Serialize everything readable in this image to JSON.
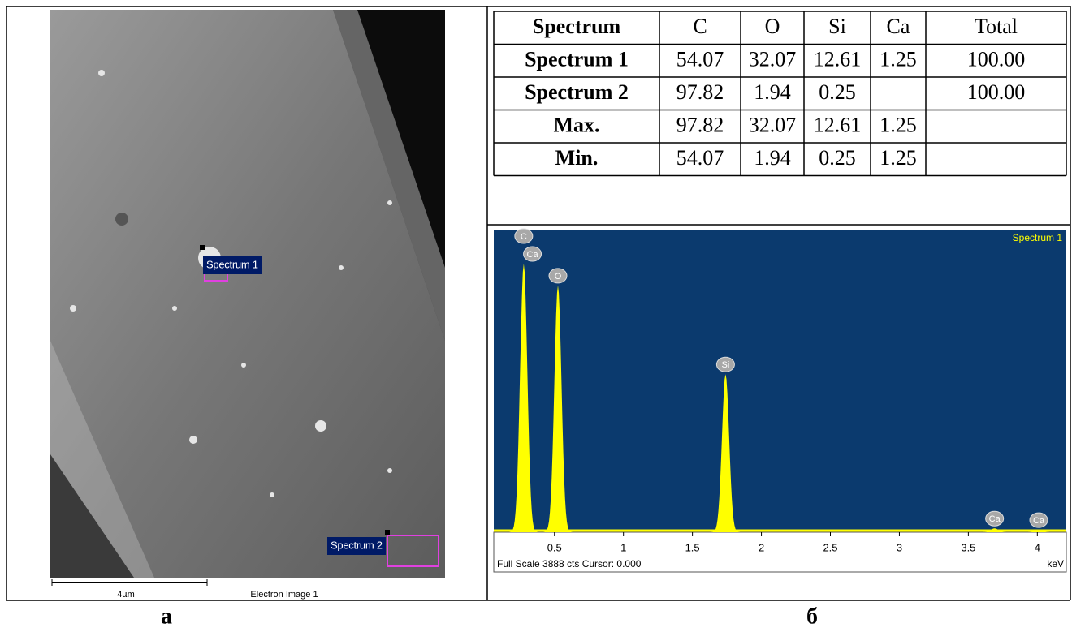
{
  "figure": {
    "image": {
      "spectrum_1": "Spectrum 1",
      "spectrum_2": "Spectrum 2",
      "scale_bar": "4µm",
      "caption": "Electron Image 1"
    },
    "table": {
      "header": [
        "Spectrum",
        "C",
        "O",
        "Si",
        "Ca",
        "Total"
      ],
      "rows": [
        [
          "Spectrum 1",
          "54.07",
          "32.07",
          "12.61",
          "1.25",
          "100.00"
        ],
        [
          "Spectrum 2",
          "97.82",
          "1.94",
          "0.25",
          null,
          "100.00"
        ],
        [
          "Max.",
          "97.82",
          "32.07",
          "12.61",
          "1.25",
          null
        ],
        [
          "Min.",
          "54.07",
          "1.94",
          "0.25",
          "1.25",
          null
        ]
      ]
    },
    "spectrum": {
      "title": "Spectrum 1",
      "footer": "Full Scale 3888 cts Cursor: 0.000",
      "x_unit": "keV",
      "xlim": [
        0.06,
        4.21
      ],
      "ylim": [
        0,
        3888
      ],
      "xticks": [
        0.5,
        1,
        1.5,
        2,
        2.5,
        3,
        3.5,
        4
      ],
      "color": "#ffff00",
      "background": "#0b3a6e",
      "peaks": [
        {
          "x": 0.277,
          "counts": 3450
        },
        {
          "x": 0.525,
          "counts": 3170
        },
        {
          "x": 1.74,
          "counts": 2030
        },
        {
          "x": 3.69,
          "counts": 50
        },
        {
          "x": 4.01,
          "counts": 30
        }
      ],
      "peak_labels": [
        {
          "label": "Ca",
          "x": 0.34
        },
        {
          "label": "C",
          "x": 0.277
        },
        {
          "label": "O",
          "x": 0.525
        },
        {
          "label": "Si",
          "x": 1.74
        },
        {
          "label": "Ca",
          "x": 3.69
        },
        {
          "label": "Ca",
          "x": 4.01
        }
      ]
    },
    "panel_labels": [
      "а",
      "б"
    ]
  }
}
